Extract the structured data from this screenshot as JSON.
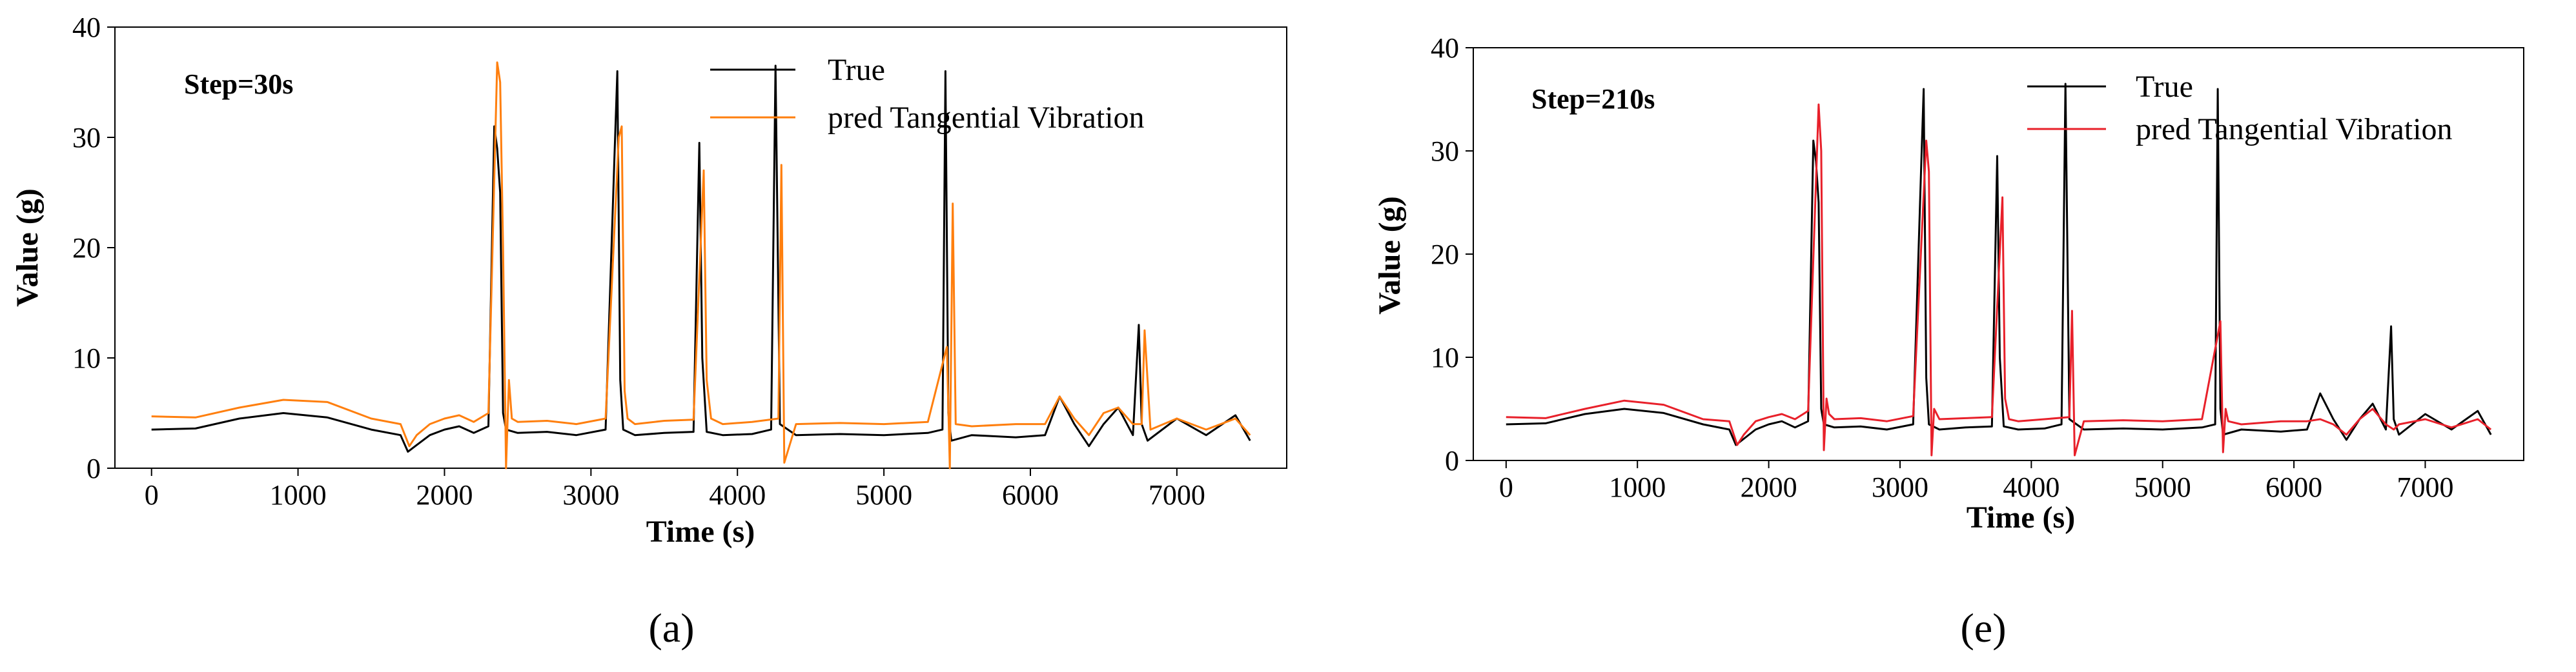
{
  "chart_data": [
    {
      "type": "line",
      "panel_label": "(a)",
      "annotation": "Step=30s",
      "xlabel": "Time (s)",
      "ylabel": "Value (g)",
      "xlim": [
        -250,
        7750
      ],
      "ylim": [
        0,
        40
      ],
      "xticks": [
        0,
        1000,
        2000,
        3000,
        4000,
        5000,
        6000,
        7000
      ],
      "yticks": [
        0,
        10,
        20,
        30,
        40
      ],
      "legend_position": "top-right",
      "series": [
        {
          "name": "True",
          "color": "#000000",
          "x": [
            0,
            300,
            600,
            900,
            1200,
            1500,
            1700,
            1750,
            1800,
            1900,
            2000,
            2100,
            2200,
            2300,
            2340,
            2360,
            2380,
            2400,
            2420,
            2500,
            2700,
            2900,
            3100,
            3160,
            3180,
            3200,
            3220,
            3300,
            3500,
            3700,
            3740,
            3760,
            3790,
            3900,
            4100,
            4230,
            4260,
            4290,
            4400,
            4700,
            5000,
            5300,
            5400,
            5420,
            5440,
            5460,
            5600,
            5900,
            6100,
            6200,
            6300,
            6400,
            6500,
            6600,
            6700,
            6740,
            6760,
            6800,
            7000,
            7200,
            7400,
            7500
          ],
          "values": [
            3.5,
            3.6,
            4.5,
            5.0,
            4.6,
            3.5,
            3.0,
            1.5,
            2.0,
            3.0,
            3.5,
            3.8,
            3.2,
            3.8,
            31.0,
            29.0,
            25.0,
            5.0,
            3.5,
            3.2,
            3.3,
            3.0,
            3.5,
            28.0,
            36.0,
            8.0,
            3.5,
            3.0,
            3.2,
            3.3,
            29.5,
            10.0,
            3.3,
            3.0,
            3.1,
            3.5,
            36.5,
            4.0,
            3.0,
            3.1,
            3.0,
            3.2,
            3.5,
            36.0,
            5.0,
            2.5,
            3.0,
            2.8,
            3.0,
            6.5,
            4.0,
            2.0,
            4.0,
            5.5,
            3.0,
            13.0,
            4.0,
            2.5,
            4.5,
            3.0,
            4.8,
            2.5
          ]
        },
        {
          "name": "pred Tangential Vibration",
          "color": "#ff7f0e",
          "x": [
            0,
            300,
            600,
            900,
            1200,
            1500,
            1700,
            1760,
            1810,
            1900,
            2000,
            2100,
            2200,
            2300,
            2360,
            2380,
            2400,
            2420,
            2440,
            2460,
            2500,
            2700,
            2900,
            3100,
            3190,
            3210,
            3230,
            3250,
            3300,
            3500,
            3700,
            3770,
            3790,
            3820,
            3900,
            4100,
            4280,
            4300,
            4320,
            4400,
            4700,
            5000,
            5300,
            5430,
            5450,
            5470,
            5490,
            5600,
            5900,
            6100,
            6200,
            6300,
            6400,
            6500,
            6600,
            6700,
            6760,
            6780,
            6820,
            7000,
            7200,
            7400,
            7500
          ],
          "values": [
            4.7,
            4.6,
            5.5,
            6.2,
            6.0,
            4.5,
            4.0,
            2.0,
            3.0,
            4.0,
            4.5,
            4.8,
            4.2,
            5.0,
            36.8,
            35.0,
            20.0,
            0.0,
            8.0,
            4.5,
            4.2,
            4.3,
            4.0,
            4.5,
            30.0,
            31.0,
            7.0,
            4.5,
            4.0,
            4.3,
            4.4,
            27.0,
            8.0,
            4.5,
            4.0,
            4.2,
            4.5,
            27.5,
            0.5,
            4.0,
            4.1,
            4.0,
            4.2,
            11.0,
            0.0,
            24.0,
            4.0,
            3.8,
            4.0,
            4.0,
            6.5,
            4.5,
            3.0,
            5.0,
            5.5,
            4.0,
            4.0,
            12.5,
            3.5,
            4.5,
            3.5,
            4.5,
            3.0
          ]
        }
      ]
    },
    {
      "type": "line",
      "panel_label": "(e)",
      "annotation": "Step=210s",
      "xlabel": "Time (s)",
      "ylabel": "Value (g)",
      "xlim": [
        -250,
        7750
      ],
      "ylim": [
        0,
        40
      ],
      "xticks": [
        0,
        1000,
        2000,
        3000,
        4000,
        5000,
        6000,
        7000
      ],
      "yticks": [
        0,
        10,
        20,
        30,
        40
      ],
      "legend_position": "top-right",
      "series": [
        {
          "name": "True",
          "color": "#000000",
          "x": [
            0,
            300,
            600,
            900,
            1200,
            1500,
            1700,
            1750,
            1800,
            1900,
            2000,
            2100,
            2200,
            2300,
            2340,
            2360,
            2380,
            2400,
            2420,
            2500,
            2700,
            2900,
            3100,
            3160,
            3180,
            3200,
            3220,
            3300,
            3500,
            3700,
            3740,
            3760,
            3790,
            3900,
            4100,
            4230,
            4260,
            4290,
            4400,
            4700,
            5000,
            5300,
            5400,
            5420,
            5440,
            5460,
            5600,
            5900,
            6100,
            6200,
            6300,
            6400,
            6500,
            6600,
            6700,
            6740,
            6760,
            6800,
            7000,
            7200,
            7400,
            7500
          ],
          "values": [
            3.5,
            3.6,
            4.5,
            5.0,
            4.6,
            3.5,
            3.0,
            1.5,
            2.0,
            3.0,
            3.5,
            3.8,
            3.2,
            3.8,
            31.0,
            29.0,
            25.0,
            5.0,
            3.5,
            3.2,
            3.3,
            3.0,
            3.5,
            28.0,
            36.0,
            8.0,
            3.5,
            3.0,
            3.2,
            3.3,
            29.5,
            10.0,
            3.3,
            3.0,
            3.1,
            3.5,
            36.5,
            4.0,
            3.0,
            3.1,
            3.0,
            3.2,
            3.5,
            36.0,
            5.0,
            2.5,
            3.0,
            2.8,
            3.0,
            6.5,
            4.0,
            2.0,
            4.0,
            5.5,
            3.0,
            13.0,
            4.0,
            2.5,
            4.5,
            3.0,
            4.8,
            2.5
          ]
        },
        {
          "name": "pred Tangential Vibration",
          "color": "#e8202a",
          "x": [
            0,
            300,
            600,
            900,
            1200,
            1500,
            1700,
            1760,
            1810,
            1900,
            2000,
            2100,
            2200,
            2300,
            2380,
            2400,
            2420,
            2440,
            2460,
            2500,
            2700,
            2900,
            3100,
            3200,
            3220,
            3240,
            3260,
            3300,
            3500,
            3700,
            3780,
            3800,
            3830,
            3900,
            4100,
            4290,
            4310,
            4330,
            4400,
            4700,
            5000,
            5300,
            5440,
            5460,
            5480,
            5500,
            5600,
            5900,
            6100,
            6200,
            6300,
            6400,
            6500,
            6600,
            6700,
            6760,
            6800,
            7000,
            7200,
            7400,
            7500
          ],
          "values": [
            4.2,
            4.1,
            5.0,
            5.8,
            5.4,
            4.0,
            3.8,
            1.5,
            2.5,
            3.8,
            4.2,
            4.5,
            4.0,
            4.8,
            34.5,
            30.0,
            1.0,
            6.0,
            4.5,
            4.0,
            4.1,
            3.8,
            4.3,
            31.0,
            28.0,
            0.5,
            5.0,
            4.0,
            4.1,
            4.2,
            25.5,
            6.0,
            4.0,
            3.8,
            4.0,
            4.2,
            14.5,
            0.5,
            3.8,
            3.9,
            3.8,
            4.0,
            13.5,
            0.8,
            5.0,
            3.8,
            3.5,
            3.8,
            3.8,
            4.0,
            3.5,
            2.5,
            4.0,
            5.0,
            3.5,
            3.0,
            3.5,
            4.0,
            3.2,
            4.0,
            3.0
          ]
        }
      ]
    }
  ]
}
